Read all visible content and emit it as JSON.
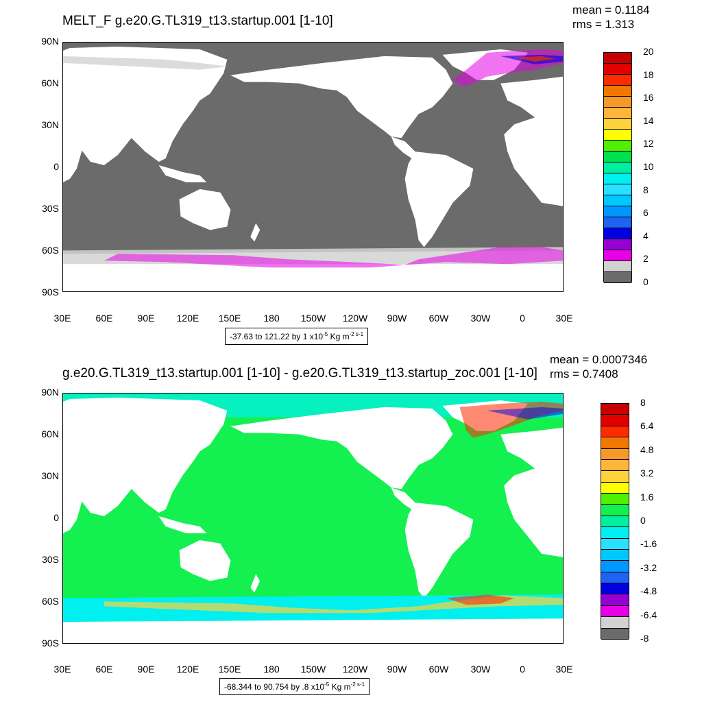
{
  "panels": [
    {
      "title": "MELT_F g.e20.G.TL319_t13.startup.001 [1-10]",
      "mean": "mean = 0.1184",
      "rms": "rms = 1.313",
      "lat_labels": [
        "90N",
        "60N",
        "30N",
        "0",
        "30S",
        "60S",
        "90S"
      ],
      "lon_labels": [
        "30E",
        "60E",
        "90E",
        "120E",
        "150E",
        "180",
        "150W",
        "120W",
        "90W",
        "60W",
        "30W",
        "0",
        "30E"
      ],
      "range_text": "-37.63 to 121.22 by 1 x10",
      "range_exp": "-5",
      "range_units": " Kg m",
      "range_units_exp": "-2 s-1",
      "colorbar_labels": [
        "20",
        "18",
        "16",
        "14",
        "12",
        "10",
        "8",
        "6",
        "4",
        "2",
        "0"
      ],
      "colorbar_colors": [
        "#c80000",
        "#e00000",
        "#ff2a00",
        "#f07800",
        "#f59a28",
        "#ffb43c",
        "#ffd23c",
        "#ffff00",
        "#50f000",
        "#00e050",
        "#00f0a0",
        "#00f0f0",
        "#28e0ff",
        "#00c8ff",
        "#0096ff",
        "#1e64f0",
        "#0000e0",
        "#9600d2",
        "#e600e6",
        "#d2d2d2",
        "#6b6b6b"
      ]
    },
    {
      "title": "g.e20.G.TL319_t13.startup.001 [1-10] - g.e20.G.TL319_t13.startup_zoc.001 [1-10]",
      "mean": "mean = 0.0007346",
      "rms": "rms = 0.7408",
      "lat_labels": [
        "90N",
        "60N",
        "30N",
        "0",
        "30S",
        "60S",
        "90S"
      ],
      "lon_labels": [
        "30E",
        "60E",
        "90E",
        "120E",
        "150E",
        "180",
        "150W",
        "120W",
        "90W",
        "60W",
        "30W",
        "0",
        "30E"
      ],
      "range_text": "-68.344 to 90.754 by .8 x10",
      "range_exp": "-5",
      "range_units": " Kg m",
      "range_units_exp": "-2 s-1",
      "colorbar_labels": [
        "8",
        "6.4",
        "4.8",
        "3.2",
        "1.6",
        "0",
        "-1.6",
        "-3.2",
        "-4.8",
        "-6.4",
        "-8"
      ],
      "colorbar_colors": [
        "#c80000",
        "#e00000",
        "#ff2a00",
        "#f07800",
        "#f59a28",
        "#ffb43c",
        "#ffd23c",
        "#ffff00",
        "#50f000",
        "#14f050",
        "#00f0a0",
        "#00f0f0",
        "#28e0ff",
        "#00c8ff",
        "#0096ff",
        "#1e64f0",
        "#0000e0",
        "#9600d2",
        "#e600e6",
        "#d2d2d2",
        "#6b6b6b"
      ]
    }
  ],
  "colors": {
    "ocean_panel1": "#6b6b6b",
    "ocean_panel2": "#14f050",
    "land": "#ffffff",
    "sea_ice_edge_panel1": "#d2d2d2",
    "sea_ice_edge_panel2": "#00f0f0"
  }
}
